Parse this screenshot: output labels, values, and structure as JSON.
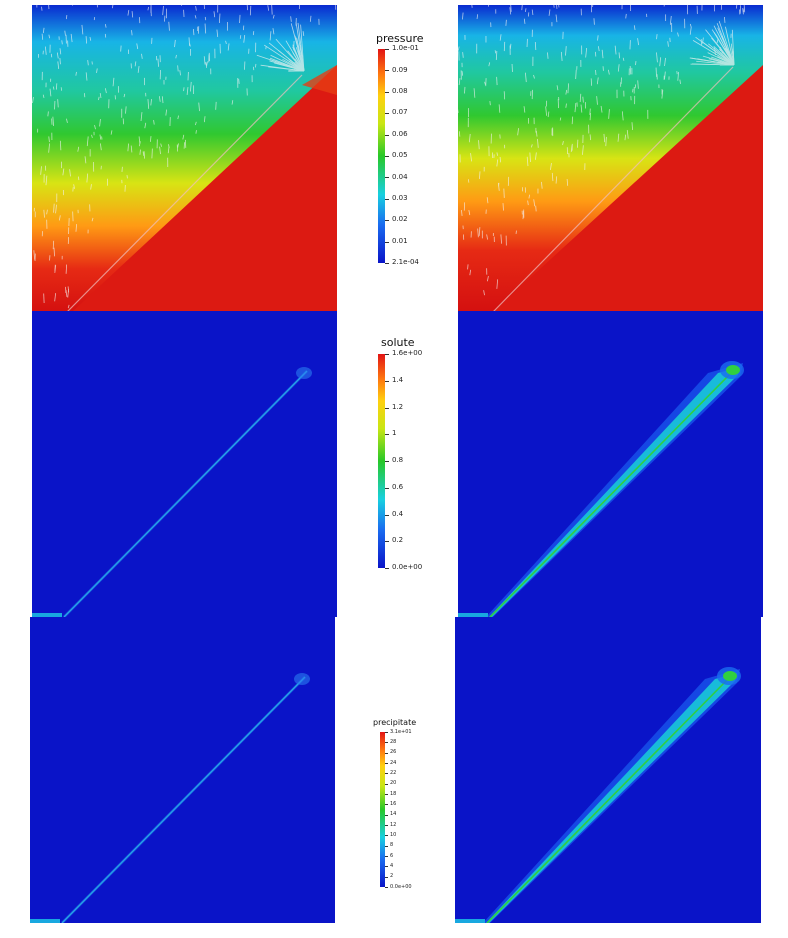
{
  "legends": {
    "pressure": {
      "title": "pressure",
      "ticks": [
        "1.0e-01",
        "0.09",
        "0.08",
        "0.07",
        "0.06",
        "0.05",
        "0.04",
        "0.03",
        "0.02",
        "0.01",
        "2.1e-04"
      ]
    },
    "solute": {
      "title": "solute",
      "ticks": [
        "1.6e+00",
        "1.4",
        "1.2",
        "1",
        "0.8",
        "0.6",
        "0.4",
        "0.2",
        "0.0e+00"
      ]
    },
    "precipitate": {
      "title": "precipitate",
      "ticks": [
        "3.1e+01",
        "28",
        "26",
        "24",
        "22",
        "20",
        "18",
        "16",
        "14",
        "12",
        "10",
        "8",
        "6",
        "4",
        "2",
        "0.0e+00"
      ]
    }
  },
  "colormap": [
    "#0a14c8",
    "#1a6cf0",
    "#18d0e0",
    "#28c828",
    "#c8e614",
    "#ffd010",
    "#ff7a10",
    "#e21414"
  ]
}
